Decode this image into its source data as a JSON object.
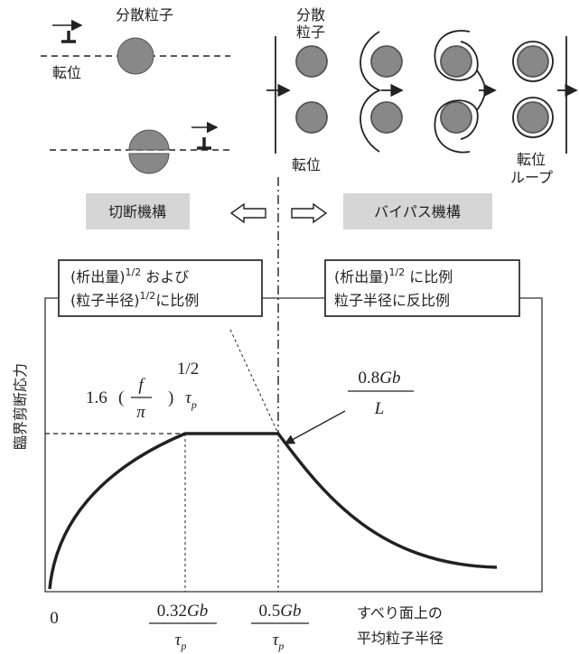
{
  "cutting_panel": {
    "particle_label": "分散粒子",
    "dislocation_label": "転位"
  },
  "bypass_panel": {
    "particle_label": [
      "分散",
      "粒子"
    ],
    "dislocation_label": "転位",
    "loop_label": [
      "転位",
      "ループ"
    ]
  },
  "mechanisms": {
    "cutting": "切断機構",
    "bypass": "バイパス機構"
  },
  "boxes": [
    {
      "lines": [
        {
          "text": "(析出量)",
          "sup": "1/2",
          "rest": " および"
        },
        {
          "text": "(粒子半径)",
          "sup": "1/2",
          "rest": "に比例"
        }
      ]
    },
    {
      "lines": [
        {
          "text": "(析出量)",
          "sup": "1/2",
          "rest": " に比例"
        },
        {
          "text": "粒子半径に反比例"
        }
      ]
    }
  ],
  "graph": {
    "y_label": "臨界剪断応力",
    "x_label": [
      "すべり面上の",
      "平均粒子半径"
    ],
    "origin": "0",
    "plateau_formula": {
      "coef": "1.6",
      "num": "f",
      "den": "π",
      "exp": "1/2",
      "tau": "τ",
      "sub": "p"
    },
    "bypass_formula": {
      "num_coef": "0.8",
      "num_var": "Gb",
      "den": "L"
    },
    "x_marks": [
      {
        "num_coef": "0.32",
        "num_var": "Gb",
        "den": "τ",
        "sub": "p"
      },
      {
        "num_coef": "0.5",
        "num_var": "Gb",
        "den": "τ",
        "sub": "p"
      }
    ]
  }
}
